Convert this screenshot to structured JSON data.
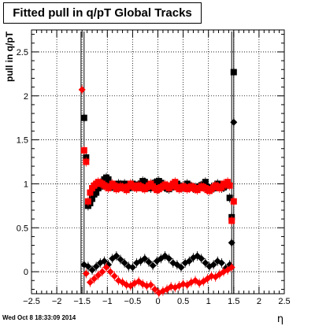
{
  "chart_data": {
    "type": "scatter",
    "title": "Fitted pull in q/pT  Global Tracks",
    "xlabel": "η",
    "ylabel": "pull in q/pT",
    "xlim": [
      -2.5,
      2.5
    ],
    "ylim": [
      -0.25,
      2.75
    ],
    "xticks": [
      "−2.5",
      "−2",
      "−1.5",
      "−1",
      "−0.5",
      "0",
      "0.5",
      "1",
      "1.5",
      "2",
      "2.5"
    ],
    "yticks": [
      "0",
      "0.5",
      "1",
      "1.5",
      "2",
      "2.5"
    ],
    "grid": true,
    "legend": "none",
    "colors": {
      "black": "#000000",
      "red": "#ff0000"
    },
    "series": [
      {
        "color": "#000000",
        "marker": "square",
        "x": [
          -1.46,
          -1.42,
          -1.38,
          -1.34,
          -1.3,
          -1.26,
          -1.22,
          -1.18,
          -1.14,
          -1.1,
          -1.06,
          -1.02,
          -0.98,
          -0.94,
          -0.9,
          -0.86,
          -0.82,
          -0.78,
          -0.74,
          -0.7,
          -0.66,
          -0.62,
          -0.58,
          -0.54,
          -0.5,
          -0.46,
          -0.42,
          -0.38,
          -0.34,
          -0.3,
          -0.26,
          -0.22,
          -0.18,
          -0.14,
          -0.1,
          -0.06,
          -0.02,
          0.02,
          0.06,
          0.1,
          0.14,
          0.18,
          0.22,
          0.26,
          0.3,
          0.34,
          0.38,
          0.42,
          0.46,
          0.5,
          0.54,
          0.58,
          0.62,
          0.66,
          0.7,
          0.74,
          0.78,
          0.82,
          0.86,
          0.9,
          0.94,
          0.98,
          1.02,
          1.06,
          1.1,
          1.14,
          1.18,
          1.22,
          1.26,
          1.3,
          1.34,
          1.38,
          1.42,
          1.46,
          1.5
        ],
        "y": [
          1.75,
          1.3,
          0.75,
          0.78,
          0.83,
          0.88,
          0.9,
          0.95,
          0.97,
          1.0,
          1.05,
          1.07,
          1.05,
          1.0,
          0.97,
          0.96,
          0.98,
          1.0,
          0.99,
          0.98,
          1.0,
          0.97,
          0.95,
          0.98,
          1.0,
          0.97,
          0.96,
          0.99,
          1.0,
          1.03,
          1.02,
          0.99,
          0.98,
          0.95,
          0.97,
          1.01,
          1.02,
          1.03,
          1.01,
          0.98,
          0.96,
          0.95,
          0.94,
          0.96,
          0.98,
          1.0,
          1.0,
          0.98,
          0.95,
          0.96,
          0.97,
          1.0,
          0.98,
          0.97,
          0.95,
          0.96,
          0.95,
          0.97,
          0.98,
          0.99,
          1.02,
          0.96,
          0.94,
          0.96,
          0.95,
          0.98,
          1.0,
          0.97,
          0.95,
          0.96,
          0.98,
          0.99,
          0.84,
          0.62,
          2.27
        ]
      },
      {
        "color": "#ff0000",
        "marker": "square",
        "x": [
          -1.46,
          -1.42,
          -1.38,
          -1.34,
          -1.3,
          -1.26,
          -1.22,
          -1.18,
          -1.14,
          -1.1,
          -1.06,
          -1.02,
          -0.98,
          -0.94,
          -0.9,
          -0.86,
          -0.82,
          -0.78,
          -0.74,
          -0.7,
          -0.66,
          -0.62,
          -0.58,
          -0.54,
          -0.5,
          -0.46,
          -0.42,
          -0.38,
          -0.34,
          -0.3,
          -0.26,
          -0.22,
          -0.18,
          -0.14,
          -0.1,
          -0.06,
          -0.02,
          0.02,
          0.06,
          0.1,
          0.14,
          0.18,
          0.22,
          0.26,
          0.3,
          0.34,
          0.38,
          0.42,
          0.46,
          0.5,
          0.54,
          0.58,
          0.62,
          0.66,
          0.7,
          0.74,
          0.78,
          0.82,
          0.86,
          0.9,
          0.94,
          0.98,
          1.02,
          1.06,
          1.1,
          1.14,
          1.18,
          1.22,
          1.26,
          1.3,
          1.34,
          1.38,
          1.42,
          1.46,
          1.5
        ],
        "y": [
          1.38,
          1.25,
          0.8,
          0.9,
          0.95,
          0.98,
          1.0,
          1.02,
          1.01,
          1.0,
          0.98,
          0.97,
          0.95,
          0.97,
          1.0,
          0.98,
          0.94,
          0.95,
          0.97,
          0.96,
          0.95,
          0.93,
          0.97,
          1.0,
          0.98,
          0.96,
          0.95,
          0.98,
          0.97,
          0.95,
          0.94,
          0.96,
          0.98,
          1.0,
          0.97,
          0.95,
          0.93,
          0.94,
          0.96,
          0.97,
          0.99,
          0.98,
          0.95,
          0.97,
          1.0,
          1.02,
          0.96,
          0.94,
          0.95,
          0.97,
          0.96,
          0.94,
          0.95,
          0.97,
          0.96,
          0.94,
          0.93,
          0.95,
          0.97,
          0.96,
          0.95,
          0.93,
          0.92,
          0.94,
          0.96,
          0.98,
          0.97,
          0.95,
          0.96,
          1.0,
          0.99,
          1.02,
          0.98,
          0.58,
          0.8
        ]
      },
      {
        "color": "#000000",
        "marker": "diamond",
        "x": [
          -1.46,
          -1.38,
          -1.3,
          -1.22,
          -1.14,
          -1.06,
          -0.98,
          -0.9,
          -0.82,
          -0.74,
          -0.66,
          -0.58,
          -0.5,
          -0.42,
          -0.34,
          -0.26,
          -0.18,
          -0.1,
          -0.02,
          0.06,
          0.14,
          0.22,
          0.3,
          0.38,
          0.46,
          0.54,
          0.62,
          0.7,
          0.78,
          0.86,
          0.94,
          1.02,
          1.1,
          1.18,
          1.26,
          1.34,
          1.42,
          1.46,
          1.5
        ],
        "y": [
          0.08,
          0.06,
          0.02,
          0.06,
          0.1,
          0.12,
          0.08,
          0.15,
          0.18,
          0.14,
          0.1,
          0.06,
          0.05,
          0.1,
          0.12,
          0.15,
          0.11,
          0.07,
          0.12,
          0.15,
          0.18,
          0.15,
          0.1,
          0.08,
          0.05,
          0.1,
          0.12,
          0.16,
          0.18,
          0.15,
          0.1,
          0.06,
          0.08,
          0.12,
          0.1,
          0.04,
          0.08,
          0.33,
          1.7
        ]
      },
      {
        "color": "#ff0000",
        "marker": "diamond",
        "x": [
          -1.5,
          -1.42,
          -1.34,
          -1.26,
          -1.18,
          -1.1,
          -1.02,
          -0.94,
          -0.86,
          -0.78,
          -0.7,
          -0.62,
          -0.54,
          -0.46,
          -0.38,
          -0.3,
          -0.22,
          -0.14,
          -0.06,
          0.02,
          0.1,
          0.18,
          0.26,
          0.34,
          0.42,
          0.5,
          0.58,
          0.66,
          0.74,
          0.82,
          0.9,
          0.98,
          1.06,
          1.14,
          1.22,
          1.3,
          1.38,
          1.46
        ],
        "y": [
          2.07,
          -0.02,
          -0.12,
          -0.08,
          -0.04,
          0.0,
          0.05,
          0.0,
          -0.05,
          -0.1,
          -0.12,
          -0.15,
          -0.16,
          -0.13,
          -0.11,
          -0.14,
          -0.16,
          -0.15,
          -0.2,
          -0.24,
          -0.22,
          -0.2,
          -0.17,
          -0.18,
          -0.16,
          -0.14,
          -0.15,
          -0.12,
          -0.1,
          -0.13,
          -0.11,
          -0.08,
          -0.05,
          -0.06,
          -0.03,
          0.0,
          0.02,
          0.05
        ]
      }
    ]
  },
  "footer": {
    "timestamp": "Wed Oct  8 18:33:09 2014"
  }
}
